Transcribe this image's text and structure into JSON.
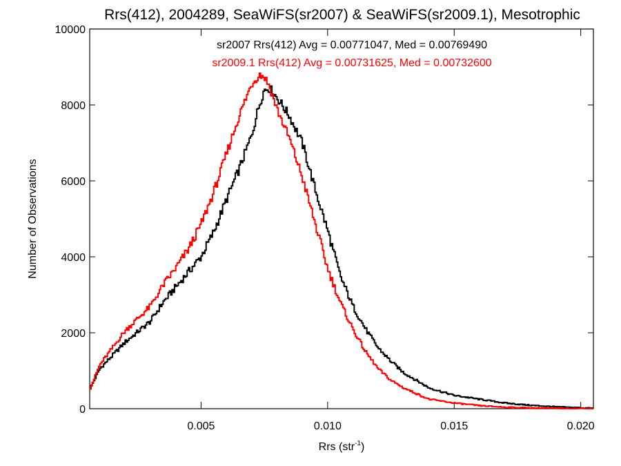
{
  "chart_data": {
    "type": "line",
    "title": "Rrs(412), 2004289, SeaWiFS(sr2007) & SeaWiFS(sr2009.1), Mesotrophic",
    "xlabel": "Rrs (str",
    "xlabel_sup": "-1",
    "xlabel_close": ")",
    "ylabel": "Number of Observations",
    "xlim": [
      0.0006,
      0.0205
    ],
    "ylim": [
      0,
      10000
    ],
    "x_ticks": [
      0.005,
      0.01,
      0.015,
      0.02
    ],
    "x_tick_labels": [
      "0.005",
      "0.010",
      "0.015",
      "0.020"
    ],
    "y_ticks": [
      0,
      2000,
      4000,
      6000,
      8000,
      10000
    ],
    "y_tick_labels": [
      "0",
      "2000",
      "4000",
      "6000",
      "8000",
      "10000"
    ],
    "grid": false,
    "step_style": "histogram",
    "annotations": [
      {
        "text": "sr2007 Rrs(412) Avg = 0.00771047, Med = 0.00769490",
        "color": "#000000"
      },
      {
        "text": "sr2009.1 Rrs(412) Avg = 0.00731625, Med = 0.00732600",
        "color": "#ff0000"
      }
    ],
    "x": [
      0.0006,
      0.001,
      0.002,
      0.003,
      0.0035,
      0.004,
      0.0045,
      0.005,
      0.0055,
      0.006,
      0.0065,
      0.007,
      0.0073,
      0.0075,
      0.0077,
      0.008,
      0.0085,
      0.009,
      0.0095,
      0.01,
      0.0105,
      0.011,
      0.0115,
      0.012,
      0.0125,
      0.013,
      0.0135,
      0.014,
      0.015,
      0.016,
      0.017,
      0.018,
      0.019,
      0.02,
      0.0205
    ],
    "series": [
      {
        "name": "sr2007",
        "color": "#000000",
        "values": [
          500,
          1050,
          1750,
          2300,
          2800,
          3200,
          3600,
          4000,
          4650,
          5500,
          6300,
          7200,
          8000,
          8400,
          8450,
          8200,
          7700,
          7000,
          5800,
          4700,
          3500,
          2700,
          2100,
          1600,
          1250,
          950,
          750,
          550,
          350,
          250,
          150,
          90,
          50,
          25,
          10
        ]
      },
      {
        "name": "sr2009.1",
        "color": "#ff0000",
        "values": [
          500,
          1150,
          2050,
          2700,
          3250,
          3700,
          4200,
          4850,
          5700,
          6700,
          7700,
          8550,
          8800,
          8750,
          8500,
          7900,
          7100,
          6100,
          4900,
          3700,
          2800,
          2100,
          1500,
          1050,
          750,
          550,
          400,
          250,
          150,
          80,
          40,
          20,
          10,
          5,
          2
        ]
      }
    ]
  }
}
